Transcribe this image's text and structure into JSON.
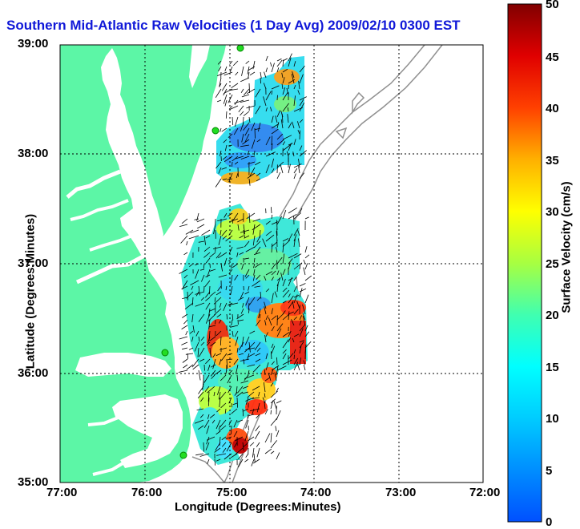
{
  "title": "Southern Mid-Atlantic Raw Velocities (1 Day Avg) 2009/02/10 0300 EST",
  "x_axis": {
    "label": "Longitude (Degrees:Minutes)",
    "ticks": [
      "77:00",
      "76:00",
      "75:00",
      "74:00",
      "73:00",
      "72:00"
    ]
  },
  "y_axis": {
    "label": "Latitude (Degrees:Minutes)",
    "ticks": [
      "39:00",
      "38:00",
      "37:00",
      "36:00",
      "35:00"
    ]
  },
  "colorbar": {
    "label": "Surface Velocity (cm/s)",
    "ticks": [
      "50",
      "45",
      "40",
      "35",
      "30",
      "25",
      "20",
      "15",
      "10",
      "5",
      "0"
    ],
    "range": [
      0,
      50
    ],
    "colormap": "jet"
  },
  "colors": {
    "land": "#5cf6a6",
    "title": "#1018d8",
    "station": "#22dd22"
  },
  "map_extent": {
    "lon": [
      -77,
      -72
    ],
    "lat": [
      35,
      39
    ]
  },
  "gridlines": true
}
